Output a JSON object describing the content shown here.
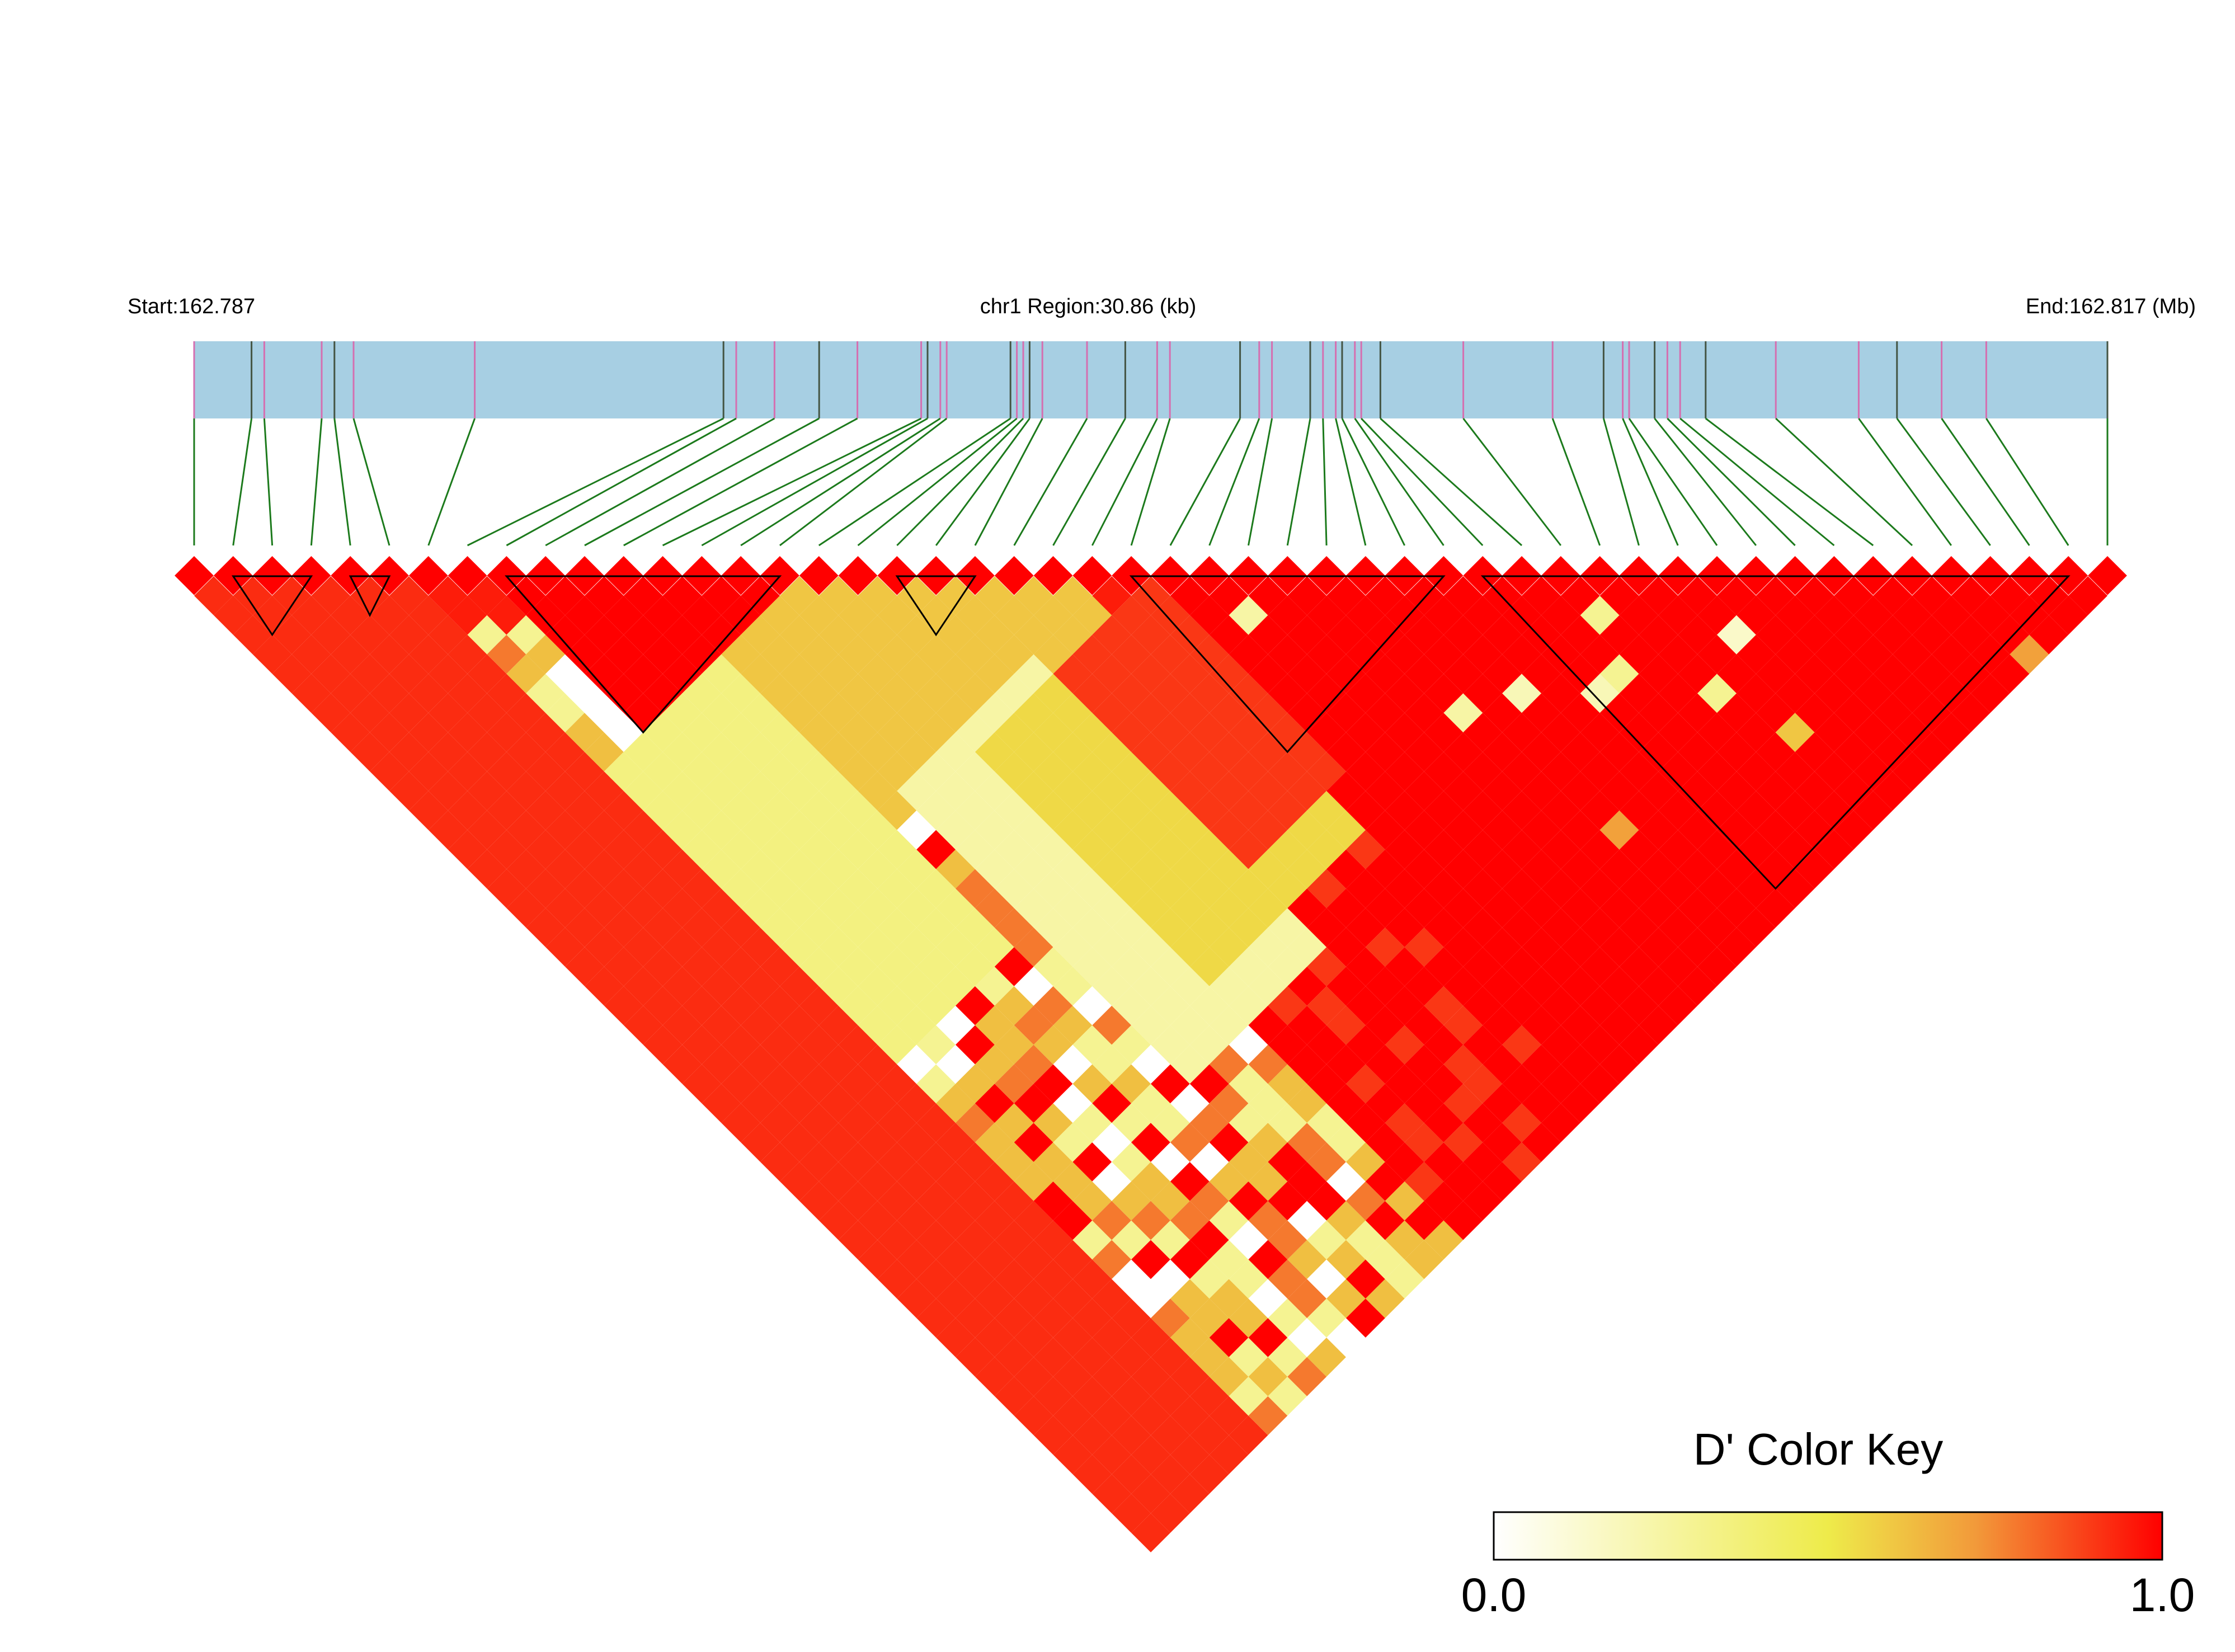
{
  "chart_data": {
    "type": "heatmap",
    "title": "",
    "header": {
      "start_label": "Start:162.787",
      "region_label": "chr1 Region:30.86 (kb)",
      "end_label": "End:162.817 (Mb)"
    },
    "chromosome": "chr1",
    "region_start_mb": 162.787,
    "region_end_mb": 162.817,
    "region_length_kb": 30.86,
    "snp_count": 50,
    "snp_positions_mb": [
      162.787,
      162.7879,
      162.7881,
      162.789,
      162.7892,
      162.7895,
      162.7914,
      162.7953,
      162.7955,
      162.7961,
      162.7968,
      162.7974,
      162.7984,
      162.7985,
      162.7987,
      162.7988,
      162.7998,
      162.7999,
      162.8,
      162.8001,
      162.8003,
      162.801,
      162.8016,
      162.8021,
      162.8023,
      162.8034,
      162.8037,
      162.8039,
      162.8045,
      162.8047,
      162.8049,
      162.805,
      162.8052,
      162.8053,
      162.8056,
      162.8069,
      162.8083,
      162.8091,
      162.8094,
      162.8095,
      162.8099,
      162.8101,
      162.8103,
      162.8107,
      162.8118,
      162.8131,
      162.8137,
      162.8144,
      162.8151,
      162.817
    ],
    "haplotype_blocks": [
      [
        1,
        3
      ],
      [
        4,
        5
      ],
      [
        8,
        15
      ],
      [
        18,
        20
      ],
      [
        24,
        32
      ],
      [
        33,
        48
      ]
    ],
    "color_key": {
      "title": "D' Color Key",
      "min_label": "0.0",
      "max_label": "1.0",
      "range": [
        0.0,
        1.0
      ],
      "colors": [
        "#ffffff",
        "#eeeb4a",
        "#f29a3a",
        "#ff0000"
      ]
    },
    "dprime_bands": [
      {
        "i_from": 0,
        "i_to": 5,
        "j_from": 0,
        "j_to": 49,
        "value": 0.92
      },
      {
        "i_from": 8,
        "i_to": 15,
        "j_from": 8,
        "j_to": 15,
        "value": 1.0
      },
      {
        "i_from": 24,
        "i_to": 49,
        "j_from": 24,
        "j_to": 49,
        "value": 1.0
      },
      {
        "i_from": 6,
        "i_to": 11,
        "j_from": 16,
        "j_to": 30,
        "value": 0.35
      },
      {
        "i_from": 12,
        "i_to": 22,
        "j_from": 16,
        "j_to": 24,
        "value": 0.6
      },
      {
        "i_from": 13,
        "i_to": 19,
        "j_from": 24,
        "j_to": 38,
        "value": 0.25
      },
      {
        "i_from": 16,
        "i_to": 23,
        "j_from": 25,
        "j_to": 36,
        "value": 0.55
      },
      {
        "i_from": 20,
        "i_to": 24,
        "j_from": 25,
        "j_to": 34,
        "value": 0.9
      }
    ],
    "dprime_cells": [
      {
        "i": 26,
        "j": 28,
        "value": 0.25
      },
      {
        "i": 35,
        "j": 37,
        "value": 0.3
      },
      {
        "i": 36,
        "j": 42,
        "value": 0.3
      },
      {
        "i": 31,
        "j": 37,
        "value": 0.2
      },
      {
        "i": 38,
        "j": 41,
        "value": 0.15
      },
      {
        "i": 29,
        "j": 36,
        "value": 0.25
      },
      {
        "i": 33,
        "j": 39,
        "value": 0.2
      },
      {
        "i": 34,
        "j": 39,
        "value": 0.3
      },
      {
        "i": 37,
        "j": 45,
        "value": 0.6
      },
      {
        "i": 30,
        "j": 43,
        "value": 0.7
      },
      {
        "i": 45,
        "j": 49,
        "value": 0.7
      }
    ]
  }
}
